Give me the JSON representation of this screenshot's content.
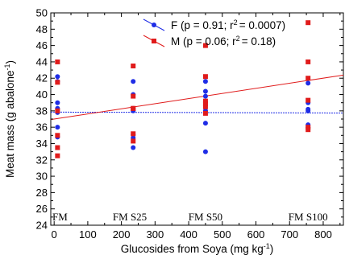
{
  "chart_data": {
    "type": "scatter",
    "xlabel": {
      "main": "Glucosides from Soya (mg kg",
      "sup": "-1",
      "tail": ")"
    },
    "ylabel": {
      "main": "Meat mass (g abalone",
      "sup": "-1",
      "tail": ")"
    },
    "xlim": [
      -10,
      860
    ],
    "ylim": [
      24,
      50
    ],
    "x_ticks": [
      0,
      100,
      200,
      300,
      400,
      500,
      600,
      700,
      800
    ],
    "y_ticks": [
      24,
      26,
      28,
      30,
      32,
      34,
      36,
      38,
      40,
      42,
      44,
      46,
      48,
      50
    ],
    "group_labels": [
      {
        "label": "FM",
        "x": 0
      },
      {
        "label": "FM S25",
        "x": 225
      },
      {
        "label": "FM S50",
        "x": 450
      },
      {
        "label": "FM S100",
        "x": 755
      }
    ],
    "legend": [
      {
        "series": "F",
        "text": "F (p = 0.91; r",
        "sup": "2",
        "tail": "= 0.0007)"
      },
      {
        "series": "M",
        "text": "M (p = 0.06; r",
        "sup": "2",
        "tail": "= 0.18)"
      }
    ],
    "series": [
      {
        "name": "F",
        "color": "#1f2de6",
        "marker": "circle",
        "x": [
          10,
          10,
          10,
          10,
          10,
          10,
          10,
          235,
          235,
          235,
          235,
          235,
          235,
          235,
          450,
          450,
          450,
          450,
          450,
          450,
          450,
          755,
          755,
          755,
          755,
          755,
          755
        ],
        "y": [
          42.2,
          41.6,
          39.0,
          38.3,
          37.8,
          36.0,
          34.8,
          41.6,
          40.0,
          38.3,
          35.1,
          34.7,
          33.5,
          38.0,
          41.6,
          40.4,
          39.8,
          38.0,
          38.0,
          36.5,
          33.0,
          41.4,
          39.0,
          38.0,
          36.3,
          36.0,
          38.2
        ],
        "fit": {
          "intercept": 37.85,
          "slope": -0.00013
        }
      },
      {
        "name": "M",
        "color": "#e01b1b",
        "marker": "square",
        "x": [
          10,
          10,
          10,
          10,
          10,
          10,
          235,
          235,
          235,
          235,
          235,
          235,
          450,
          450,
          450,
          450,
          450,
          450,
          755,
          755,
          755,
          755,
          755,
          755
        ],
        "y": [
          44.0,
          41.5,
          38.0,
          35.0,
          33.5,
          32.5,
          43.5,
          39.8,
          38.3,
          38.3,
          35.2,
          34.3,
          46.0,
          42.2,
          39.2,
          38.9,
          38.5,
          37.7,
          48.8,
          44.0,
          42.0,
          39.3,
          36.0,
          35.7
        ],
        "fit": {
          "intercept": 37.0,
          "slope": 0.00626
        }
      }
    ]
  }
}
